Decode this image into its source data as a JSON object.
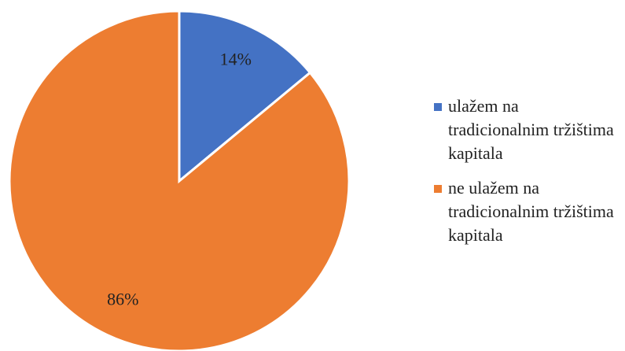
{
  "chart_data": {
    "type": "pie",
    "categories": [
      "ulažem na tradicionalnim tržištima kapitala",
      "ne ulažem na tradicionalnim tržištima kapitala"
    ],
    "values": [
      14,
      86
    ],
    "value_labels": [
      "14%",
      "86%"
    ],
    "colors": [
      "#4472c4",
      "#ed7d31"
    ],
    "legend": "right"
  }
}
